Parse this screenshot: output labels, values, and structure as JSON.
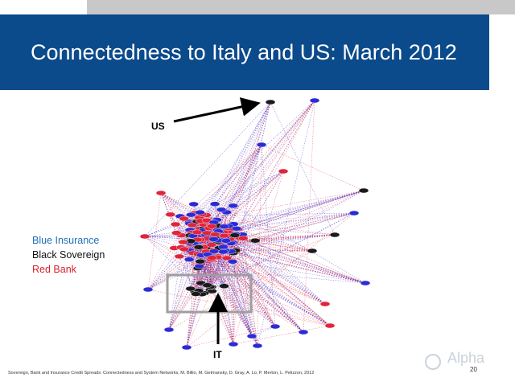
{
  "slide": {
    "title": "Connectedness to Italy and US: March 2012",
    "legend": {
      "blue": "Blue Insurance",
      "black": "Black Sovereign",
      "red": "Red Bank"
    },
    "labels": {
      "us": "US",
      "it": "IT"
    },
    "footer": "Sovereign, Bank and Insurance Credit Spreads: Connectedness and System Networks,  M. Billio, M. Getmansky, D. Gray,  A. Lo, P. Merton,  L. Pelizzon, 2012",
    "page_number": "20",
    "logo_text": "Alpha"
  },
  "colors": {
    "band": "#0b4a8b",
    "insurance": "#2b2bd6",
    "sovereign": "#1a1a1a",
    "bank": "#e0243a",
    "legend_blue": "#1f6fb8",
    "legend_red": "#d81f2a"
  }
}
